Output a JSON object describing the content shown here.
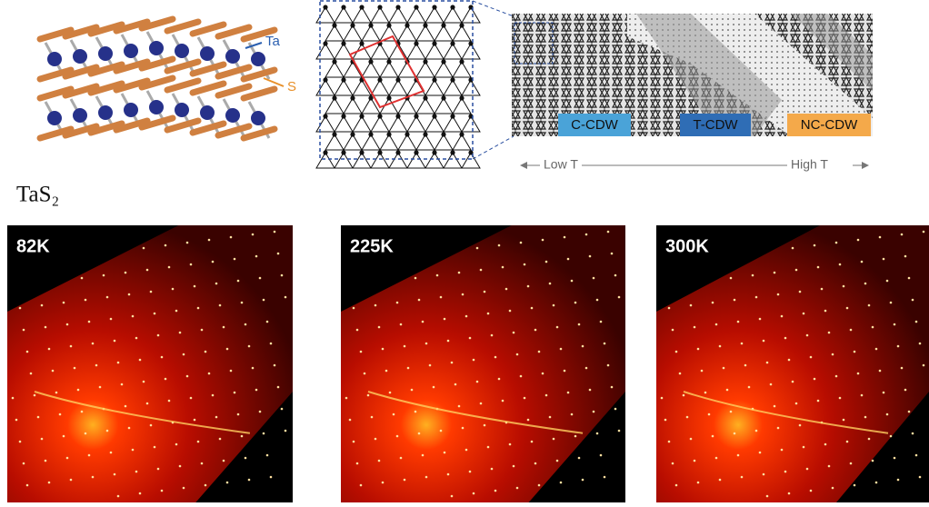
{
  "structure": {
    "atom_labels": [
      "Ta",
      "S"
    ]
  },
  "phases": {
    "labels": [
      "C-CDW",
      "T-CDW",
      "NC-CDW"
    ],
    "low_end": "Low T",
    "high_end": "High T"
  },
  "material": "TaS₂",
  "panels": [
    {
      "label": "82K"
    },
    {
      "label": "225K"
    },
    {
      "label": "300K"
    }
  ]
}
